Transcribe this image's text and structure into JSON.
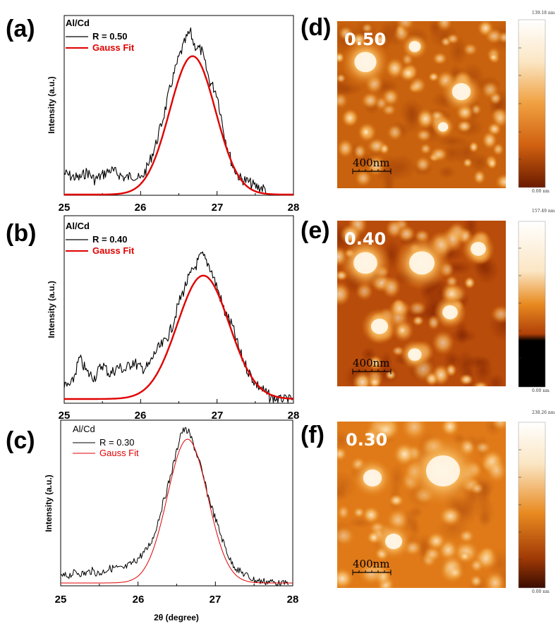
{
  "panels": [
    {
      "label": "(a)",
      "legend_title": "Al/Cd",
      "legend_data": "R = 0.50",
      "legend_fit": "Gauss Fit",
      "ylabel": "Intensity (a.u.)",
      "xticks": [
        "25",
        "26",
        "27",
        "28"
      ],
      "xlabel": ""
    },
    {
      "label": "(b)",
      "legend_title": "Al/Cd",
      "legend_data": "R = 0.40",
      "legend_fit": "Gauss Fit",
      "ylabel": "Intensity (a.u.)",
      "xticks": [
        "25",
        "26",
        "27",
        "28"
      ],
      "xlabel": ""
    },
    {
      "label": "(c)",
      "legend_title": "Al/Cd",
      "legend_data": "R = 0.30",
      "legend_fit": "Gauss Fit",
      "ylabel": "Intensity (a.u.)",
      "xticks": [
        "25",
        "26",
        "27",
        "28"
      ],
      "xlabel": "2θ (degree)"
    }
  ],
  "afm": [
    {
      "label": "(d)",
      "value": "0.50",
      "scale_bar": "400nm",
      "cb_max": "139.18 nm",
      "cb_min": "0.00 nm"
    },
    {
      "label": "(e)",
      "value": "0.40",
      "scale_bar": "400nm",
      "cb_max": "157.49 nm",
      "cb_min": "0.00 nm"
    },
    {
      "label": "(f)",
      "value": "0.30",
      "scale_bar": "400nm",
      "cb_max": "238.26 nm",
      "cb_min": "0.00 nm"
    }
  ],
  "colors": {
    "data": "#000000",
    "fit": "#e00000",
    "afm_dark": "#7a1e00",
    "afm_mid": "#e07a12",
    "afm_light": "#fff3dc"
  },
  "chart_data": [
    {
      "type": "line",
      "xlim": [
        25,
        28
      ],
      "ylim": [
        0,
        1
      ],
      "legend": "top-left",
      "series": [
        {
          "name": "R = 0.50",
          "x": [
            25.0,
            25.1,
            25.2,
            25.3,
            25.4,
            25.5,
            25.6,
            25.7,
            25.8,
            25.9,
            26.0,
            26.1,
            26.2,
            26.3,
            26.4,
            26.5,
            26.6,
            26.65,
            26.7,
            26.8,
            26.9,
            27.0,
            27.1,
            27.2,
            27.3,
            27.4,
            27.5,
            27.6,
            27.7,
            27.8,
            27.9,
            28.0
          ],
          "y": [
            0.13,
            0.11,
            0.1,
            0.14,
            0.09,
            0.12,
            0.15,
            0.13,
            0.1,
            0.12,
            0.09,
            0.18,
            0.31,
            0.48,
            0.68,
            0.84,
            0.96,
            1.0,
            0.92,
            0.88,
            0.7,
            0.62,
            0.36,
            0.18,
            0.1,
            0.08,
            0.05,
            0.04,
            0.01,
            0.0,
            0.0,
            0.0
          ]
        },
        {
          "name": "Gauss Fit",
          "center": 26.68,
          "sigma": 0.3,
          "amplitude": 0.85,
          "baseline": 0.0
        }
      ]
    },
    {
      "type": "line",
      "xlim": [
        25,
        28
      ],
      "ylim": [
        0,
        1
      ],
      "legend": "top-left",
      "series": [
        {
          "name": "R = 0.40",
          "x": [
            25.0,
            25.1,
            25.2,
            25.3,
            25.4,
            25.5,
            25.6,
            25.7,
            25.8,
            25.9,
            26.0,
            26.1,
            26.2,
            26.3,
            26.4,
            26.5,
            26.6,
            26.7,
            26.8,
            26.9,
            27.0,
            27.1,
            27.2,
            27.3,
            27.4,
            27.5,
            27.6,
            27.7,
            27.8,
            27.9,
            28.0
          ],
          "y": [
            0.08,
            0.1,
            0.28,
            0.18,
            0.15,
            0.24,
            0.17,
            0.22,
            0.2,
            0.26,
            0.21,
            0.22,
            0.33,
            0.38,
            0.48,
            0.66,
            0.8,
            0.9,
            0.99,
            0.92,
            0.77,
            0.6,
            0.5,
            0.32,
            0.2,
            0.11,
            0.06,
            0.01,
            0.0,
            0.0,
            0.0
          ]
        },
        {
          "name": "Gauss Fit",
          "center": 26.82,
          "sigma": 0.34,
          "amplitude": 0.85,
          "baseline": 0.0
        }
      ]
    },
    {
      "type": "line",
      "xlim": [
        25,
        28
      ],
      "ylim": [
        0,
        1
      ],
      "legend": "top-left",
      "series": [
        {
          "name": "R = 0.30",
          "x": [
            25.0,
            25.1,
            25.2,
            25.3,
            25.4,
            25.5,
            25.6,
            25.7,
            25.8,
            25.9,
            26.0,
            26.1,
            26.2,
            26.3,
            26.4,
            26.5,
            26.55,
            26.6,
            26.65,
            26.7,
            26.8,
            26.9,
            27.0,
            27.1,
            27.2,
            27.3,
            27.4,
            27.5,
            27.6,
            27.7,
            27.8,
            27.9,
            28.0
          ],
          "y": [
            0.04,
            0.05,
            0.07,
            0.06,
            0.08,
            0.06,
            0.09,
            0.1,
            0.09,
            0.12,
            0.16,
            0.21,
            0.3,
            0.48,
            0.66,
            0.86,
            0.98,
            1.0,
            0.99,
            0.93,
            0.78,
            0.58,
            0.42,
            0.27,
            0.14,
            0.08,
            0.05,
            0.02,
            0.01,
            0.01,
            0.0,
            0.0,
            0.0
          ]
        },
        {
          "name": "Gauss Fit",
          "center": 26.64,
          "sigma": 0.26,
          "amplitude": 0.94,
          "baseline": 0.0
        }
      ]
    }
  ]
}
